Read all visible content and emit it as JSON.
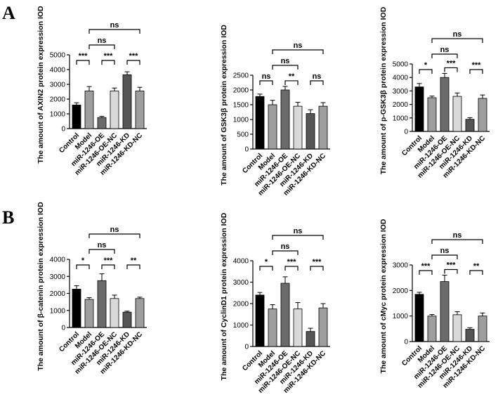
{
  "panel_labels": [
    "A",
    "B"
  ],
  "chart_data": [
    {
      "type": "bar",
      "panel": "A",
      "ylabel": "The amount of AXIN2 protein expression IOD",
      "categories": [
        "Control",
        "Model",
        "miR-1246-OE",
        "miR-1246-OE-NC",
        "miR-1246-KD",
        "miR-1246-KD-NC"
      ],
      "values": [
        1600,
        2550,
        750,
        2550,
        3650,
        2550
      ],
      "errors": [
        150,
        300,
        80,
        200,
        200,
        250
      ],
      "colors": [
        "#000000",
        "#9e9e9e",
        "#6b6b6b",
        "#d9d9d9",
        "#555555",
        "#9e9e9e"
      ],
      "ylim": [
        0,
        5000
      ],
      "yticks": [
        "0",
        "1000",
        "2000",
        "3000",
        "4000",
        "5000"
      ],
      "comparisons": [
        {
          "from": 0,
          "to": 1,
          "label": "***"
        },
        {
          "from": 2,
          "to": 3,
          "label": "***"
        },
        {
          "from": 4,
          "to": 5,
          "label": "***"
        },
        {
          "from": 1,
          "to": 3,
          "label": "ns"
        },
        {
          "from": 1,
          "to": 5,
          "label": "ns"
        }
      ]
    },
    {
      "type": "bar",
      "panel": "A",
      "ylabel": "The amount of GSK3β protein expression IOD",
      "categories": [
        "Control",
        "Model",
        "miR-1246-OE",
        "miR-1246-OE-NC",
        "miR-1246-KD",
        "miR-1246-KD-NC"
      ],
      "values": [
        1780,
        1500,
        2000,
        1450,
        1200,
        1450
      ],
      "errors": [
        80,
        150,
        120,
        130,
        130,
        120
      ],
      "colors": [
        "#000000",
        "#9e9e9e",
        "#6b6b6b",
        "#d9d9d9",
        "#555555",
        "#9e9e9e"
      ],
      "ylim": [
        0,
        2500
      ],
      "yticks": [
        "0",
        "500",
        "1000",
        "1500",
        "2000",
        "2500"
      ],
      "comparisons": [
        {
          "from": 0,
          "to": 1,
          "label": "ns"
        },
        {
          "from": 2,
          "to": 3,
          "label": "**"
        },
        {
          "from": 4,
          "to": 5,
          "label": "ns"
        },
        {
          "from": 1,
          "to": 3,
          "label": "ns"
        },
        {
          "from": 1,
          "to": 5,
          "label": "ns"
        }
      ]
    },
    {
      "type": "bar",
      "panel": "A",
      "ylabel": "The amount of p-GSK3β protein expression IOD",
      "categories": [
        "Control",
        "Model",
        "miR-1246-OE",
        "miR-1246-OE-NC",
        "miR-1246-KD",
        "miR-1246-KD-NC"
      ],
      "values": [
        3300,
        2500,
        4000,
        2600,
        900,
        2450
      ],
      "errors": [
        250,
        120,
        300,
        250,
        120,
        250
      ],
      "colors": [
        "#000000",
        "#9e9e9e",
        "#6b6b6b",
        "#d9d9d9",
        "#555555",
        "#9e9e9e"
      ],
      "ylim": [
        0,
        5000
      ],
      "yticks": [
        "0",
        "1000",
        "2000",
        "3000",
        "4000",
        "5000"
      ],
      "comparisons": [
        {
          "from": 0,
          "to": 1,
          "label": "*"
        },
        {
          "from": 2,
          "to": 3,
          "label": "***"
        },
        {
          "from": 4,
          "to": 5,
          "label": "***"
        },
        {
          "from": 1,
          "to": 3,
          "label": "ns"
        },
        {
          "from": 1,
          "to": 5,
          "label": "ns"
        }
      ]
    },
    {
      "type": "bar",
      "panel": "B",
      "ylabel": "The amount of β-catenin protein expression IOD",
      "categories": [
        "Control",
        "Model",
        "miR-1246-OE",
        "miR-1246-OE-NC",
        "miR-1246-KD",
        "miR-1246-KD-NC"
      ],
      "values": [
        2250,
        1650,
        2750,
        1700,
        900,
        1700
      ],
      "errors": [
        200,
        100,
        400,
        200,
        60,
        80
      ],
      "colors": [
        "#000000",
        "#9e9e9e",
        "#6b6b6b",
        "#d9d9d9",
        "#555555",
        "#9e9e9e"
      ],
      "ylim": [
        0,
        4000
      ],
      "yticks": [
        "0",
        "1000",
        "2000",
        "3000",
        "4000"
      ],
      "comparisons": [
        {
          "from": 0,
          "to": 1,
          "label": "*"
        },
        {
          "from": 2,
          "to": 3,
          "label": "***"
        },
        {
          "from": 4,
          "to": 5,
          "label": "**"
        },
        {
          "from": 1,
          "to": 3,
          "label": "ns"
        },
        {
          "from": 1,
          "to": 5,
          "label": "ns"
        }
      ]
    },
    {
      "type": "bar",
      "panel": "B",
      "ylabel": "The amount of CyclinD1 protein expression IOD",
      "categories": [
        "Control",
        "Model",
        "miR-1246-OE",
        "miR-1246-OE-NC",
        "miR-1246-KD",
        "miR-1246-KD-NC"
      ],
      "values": [
        2400,
        1750,
        2950,
        1750,
        700,
        1800
      ],
      "errors": [
        120,
        200,
        300,
        300,
        150,
        200
      ],
      "colors": [
        "#000000",
        "#9e9e9e",
        "#6b6b6b",
        "#d9d9d9",
        "#555555",
        "#9e9e9e"
      ],
      "ylim": [
        0,
        4000
      ],
      "yticks": [
        "0",
        "1000",
        "2000",
        "3000",
        "4000"
      ],
      "comparisons": [
        {
          "from": 0,
          "to": 1,
          "label": "*"
        },
        {
          "from": 2,
          "to": 3,
          "label": "***"
        },
        {
          "from": 4,
          "to": 5,
          "label": "***"
        },
        {
          "from": 1,
          "to": 3,
          "label": "ns"
        },
        {
          "from": 1,
          "to": 5,
          "label": "ns"
        }
      ]
    },
    {
      "type": "bar",
      "panel": "B",
      "ylabel": "The amount of cMyc protein expression IOD",
      "categories": [
        "Control",
        "Model",
        "miR-1246-OE",
        "miR-1246-OE-NC",
        "miR-1246-KD",
        "miR-1246-KD-NC"
      ],
      "values": [
        1850,
        1000,
        2350,
        1050,
        480,
        1000
      ],
      "errors": [
        80,
        60,
        250,
        120,
        60,
        120
      ],
      "colors": [
        "#000000",
        "#9e9e9e",
        "#6b6b6b",
        "#d9d9d9",
        "#555555",
        "#9e9e9e"
      ],
      "ylim": [
        0,
        3000
      ],
      "yticks": [
        "0",
        "1000",
        "2000",
        "3000"
      ],
      "comparisons": [
        {
          "from": 0,
          "to": 1,
          "label": "***"
        },
        {
          "from": 2,
          "to": 3,
          "label": "***"
        },
        {
          "from": 4,
          "to": 5,
          "label": "**"
        },
        {
          "from": 1,
          "to": 3,
          "label": "ns"
        },
        {
          "from": 1,
          "to": 5,
          "label": "ns"
        }
      ]
    }
  ]
}
